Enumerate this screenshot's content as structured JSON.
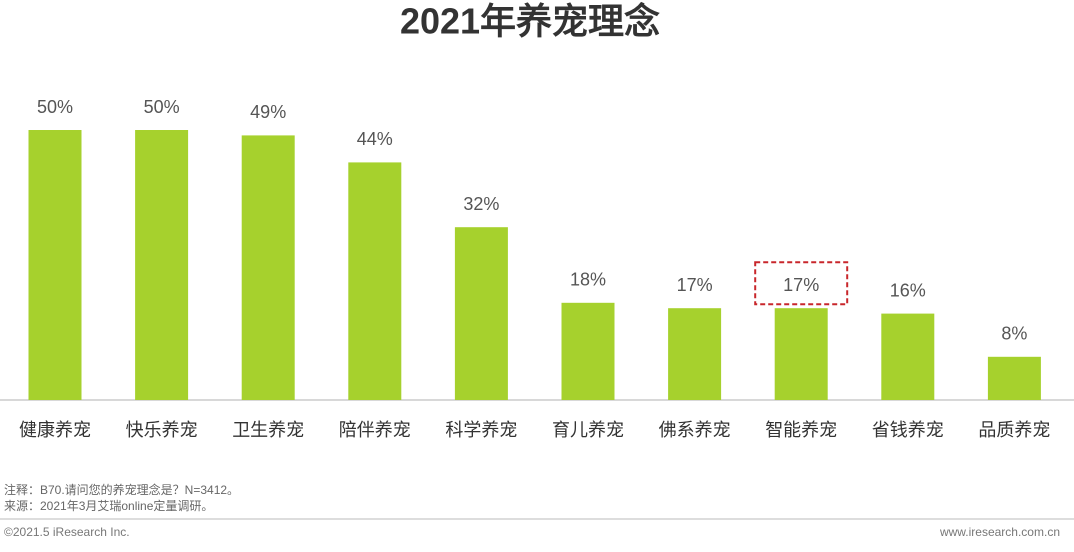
{
  "chart_data": {
    "type": "bar",
    "title": "2021年养宠理念",
    "categories": [
      "健康养宠",
      "快乐养宠",
      "卫生养宠",
      "陪伴养宠",
      "科学养宠",
      "育儿养宠",
      "佛系养宠",
      "智能养宠",
      "省钱养宠",
      "品质养宠"
    ],
    "values": [
      50,
      50,
      49,
      44,
      32,
      18,
      17,
      17,
      16,
      8
    ],
    "value_labels": [
      "50%",
      "50%",
      "49%",
      "44%",
      "32%",
      "18%",
      "17%",
      "17%",
      "16%",
      "8%"
    ],
    "color": "#a6d12d",
    "notes": [
      "注释：B70.请问您的养宠理念是？N=3412。",
      "来源：2021年3月艾瑞online定量调研。"
    ],
    "footer_left": "©2021.5 iResearch Inc.",
    "footer_right": "www.iresearch.com.cn"
  }
}
